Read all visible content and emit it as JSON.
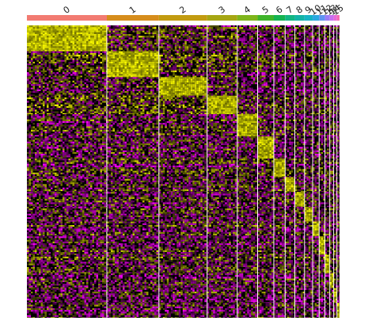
{
  "chart_data": {
    "type": "heatmap",
    "title": "",
    "xlabel": "",
    "ylabel": "",
    "legend": "none",
    "grid": false,
    "color_scale": {
      "low": "#ff00ff",
      "mid": "#000000",
      "high": "#ffff00"
    },
    "clusters": [
      {
        "label": "0",
        "cell_share": 0.247,
        "color": "#f27b72"
      },
      {
        "label": "1",
        "cell_share": 0.161,
        "color": "#d68d1c"
      },
      {
        "label": "2",
        "cell_share": 0.149,
        "color": "#c29b10"
      },
      {
        "label": "3",
        "cell_share": 0.093,
        "color": "#a6a613"
      },
      {
        "label": "4",
        "cell_share": 0.063,
        "color": "#7fb51b"
      },
      {
        "label": "5",
        "cell_share": 0.05,
        "color": "#3fb42a"
      },
      {
        "label": "6",
        "cell_share": 0.035,
        "color": "#14b351"
      },
      {
        "label": "7",
        "cell_share": 0.03,
        "color": "#12b582"
      },
      {
        "label": "8",
        "cell_share": 0.03,
        "color": "#12b3a6"
      },
      {
        "label": "9",
        "cell_share": 0.025,
        "color": "#16b3c4"
      },
      {
        "label": "10",
        "cell_share": 0.02,
        "color": "#2aa8e0"
      },
      {
        "label": "11",
        "cell_share": 0.018,
        "color": "#5e94f0"
      },
      {
        "label": "12",
        "cell_share": 0.015,
        "color": "#9a7cf5"
      },
      {
        "label": "13",
        "cell_share": 0.012,
        "color": "#c86ef0"
      },
      {
        "label": "14",
        "cell_share": 0.01,
        "color": "#e868d8"
      },
      {
        "label": "15",
        "cell_share": 0.008,
        "color": "#f56cb3"
      }
    ],
    "gene_blocks": [
      {
        "cluster": "0",
        "marker_rows": 14
      },
      {
        "cluster": "1",
        "marker_rows": 14
      },
      {
        "cluster": "2",
        "marker_rows": 10
      },
      {
        "cluster": "3",
        "marker_rows": 10
      },
      {
        "cluster": "4",
        "marker_rows": 12
      },
      {
        "cluster": "5",
        "marker_rows": 12
      },
      {
        "cluster": "6",
        "marker_rows": 10
      },
      {
        "cluster": "7",
        "marker_rows": 8
      },
      {
        "cluster": "8",
        "marker_rows": 8
      },
      {
        "cluster": "9",
        "marker_rows": 8
      },
      {
        "cluster": "10",
        "marker_rows": 8
      },
      {
        "cluster": "11",
        "marker_rows": 10
      },
      {
        "cluster": "12",
        "marker_rows": 10
      },
      {
        "cluster": "13",
        "marker_rows": 8
      },
      {
        "cluster": "14",
        "marker_rows": 8
      },
      {
        "cluster": "15",
        "marker_rows": 8
      }
    ]
  }
}
